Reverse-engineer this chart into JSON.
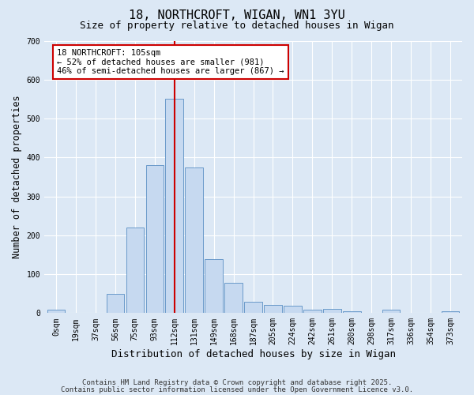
{
  "title": "18, NORTHCROFT, WIGAN, WN1 3YU",
  "subtitle": "Size of property relative to detached houses in Wigan",
  "xlabel": "Distribution of detached houses by size in Wigan",
  "ylabel": "Number of detached properties",
  "bin_labels": [
    "0sqm",
    "19sqm",
    "37sqm",
    "56sqm",
    "75sqm",
    "93sqm",
    "112sqm",
    "131sqm",
    "149sqm",
    "168sqm",
    "187sqm",
    "205sqm",
    "224sqm",
    "242sqm",
    "261sqm",
    "280sqm",
    "298sqm",
    "317sqm",
    "336sqm",
    "354sqm",
    "373sqm"
  ],
  "bar_heights": [
    8,
    0,
    0,
    50,
    220,
    380,
    550,
    375,
    138,
    78,
    30,
    20,
    18,
    8,
    10,
    5,
    0,
    8,
    0,
    0,
    4
  ],
  "bar_color": "#c6d9f0",
  "bar_edge_color": "#5a8fc4",
  "vline_x": 6.0,
  "vline_color": "#cc0000",
  "annotation_text": "18 NORTHCROFT: 105sqm\n← 52% of detached houses are smaller (981)\n46% of semi-detached houses are larger (867) →",
  "annotation_box_color": "#ffffff",
  "annotation_box_edge": "#cc0000",
  "background_color": "#dce8f5",
  "plot_bg_color": "#dce8f5",
  "title_fontsize": 11,
  "subtitle_fontsize": 9,
  "tick_fontsize": 7,
  "footer_line1": "Contains HM Land Registry data © Crown copyright and database right 2025.",
  "footer_line2": "Contains public sector information licensed under the Open Government Licence v3.0.",
  "ylim": [
    0,
    700
  ],
  "grid_color": "#ffffff"
}
